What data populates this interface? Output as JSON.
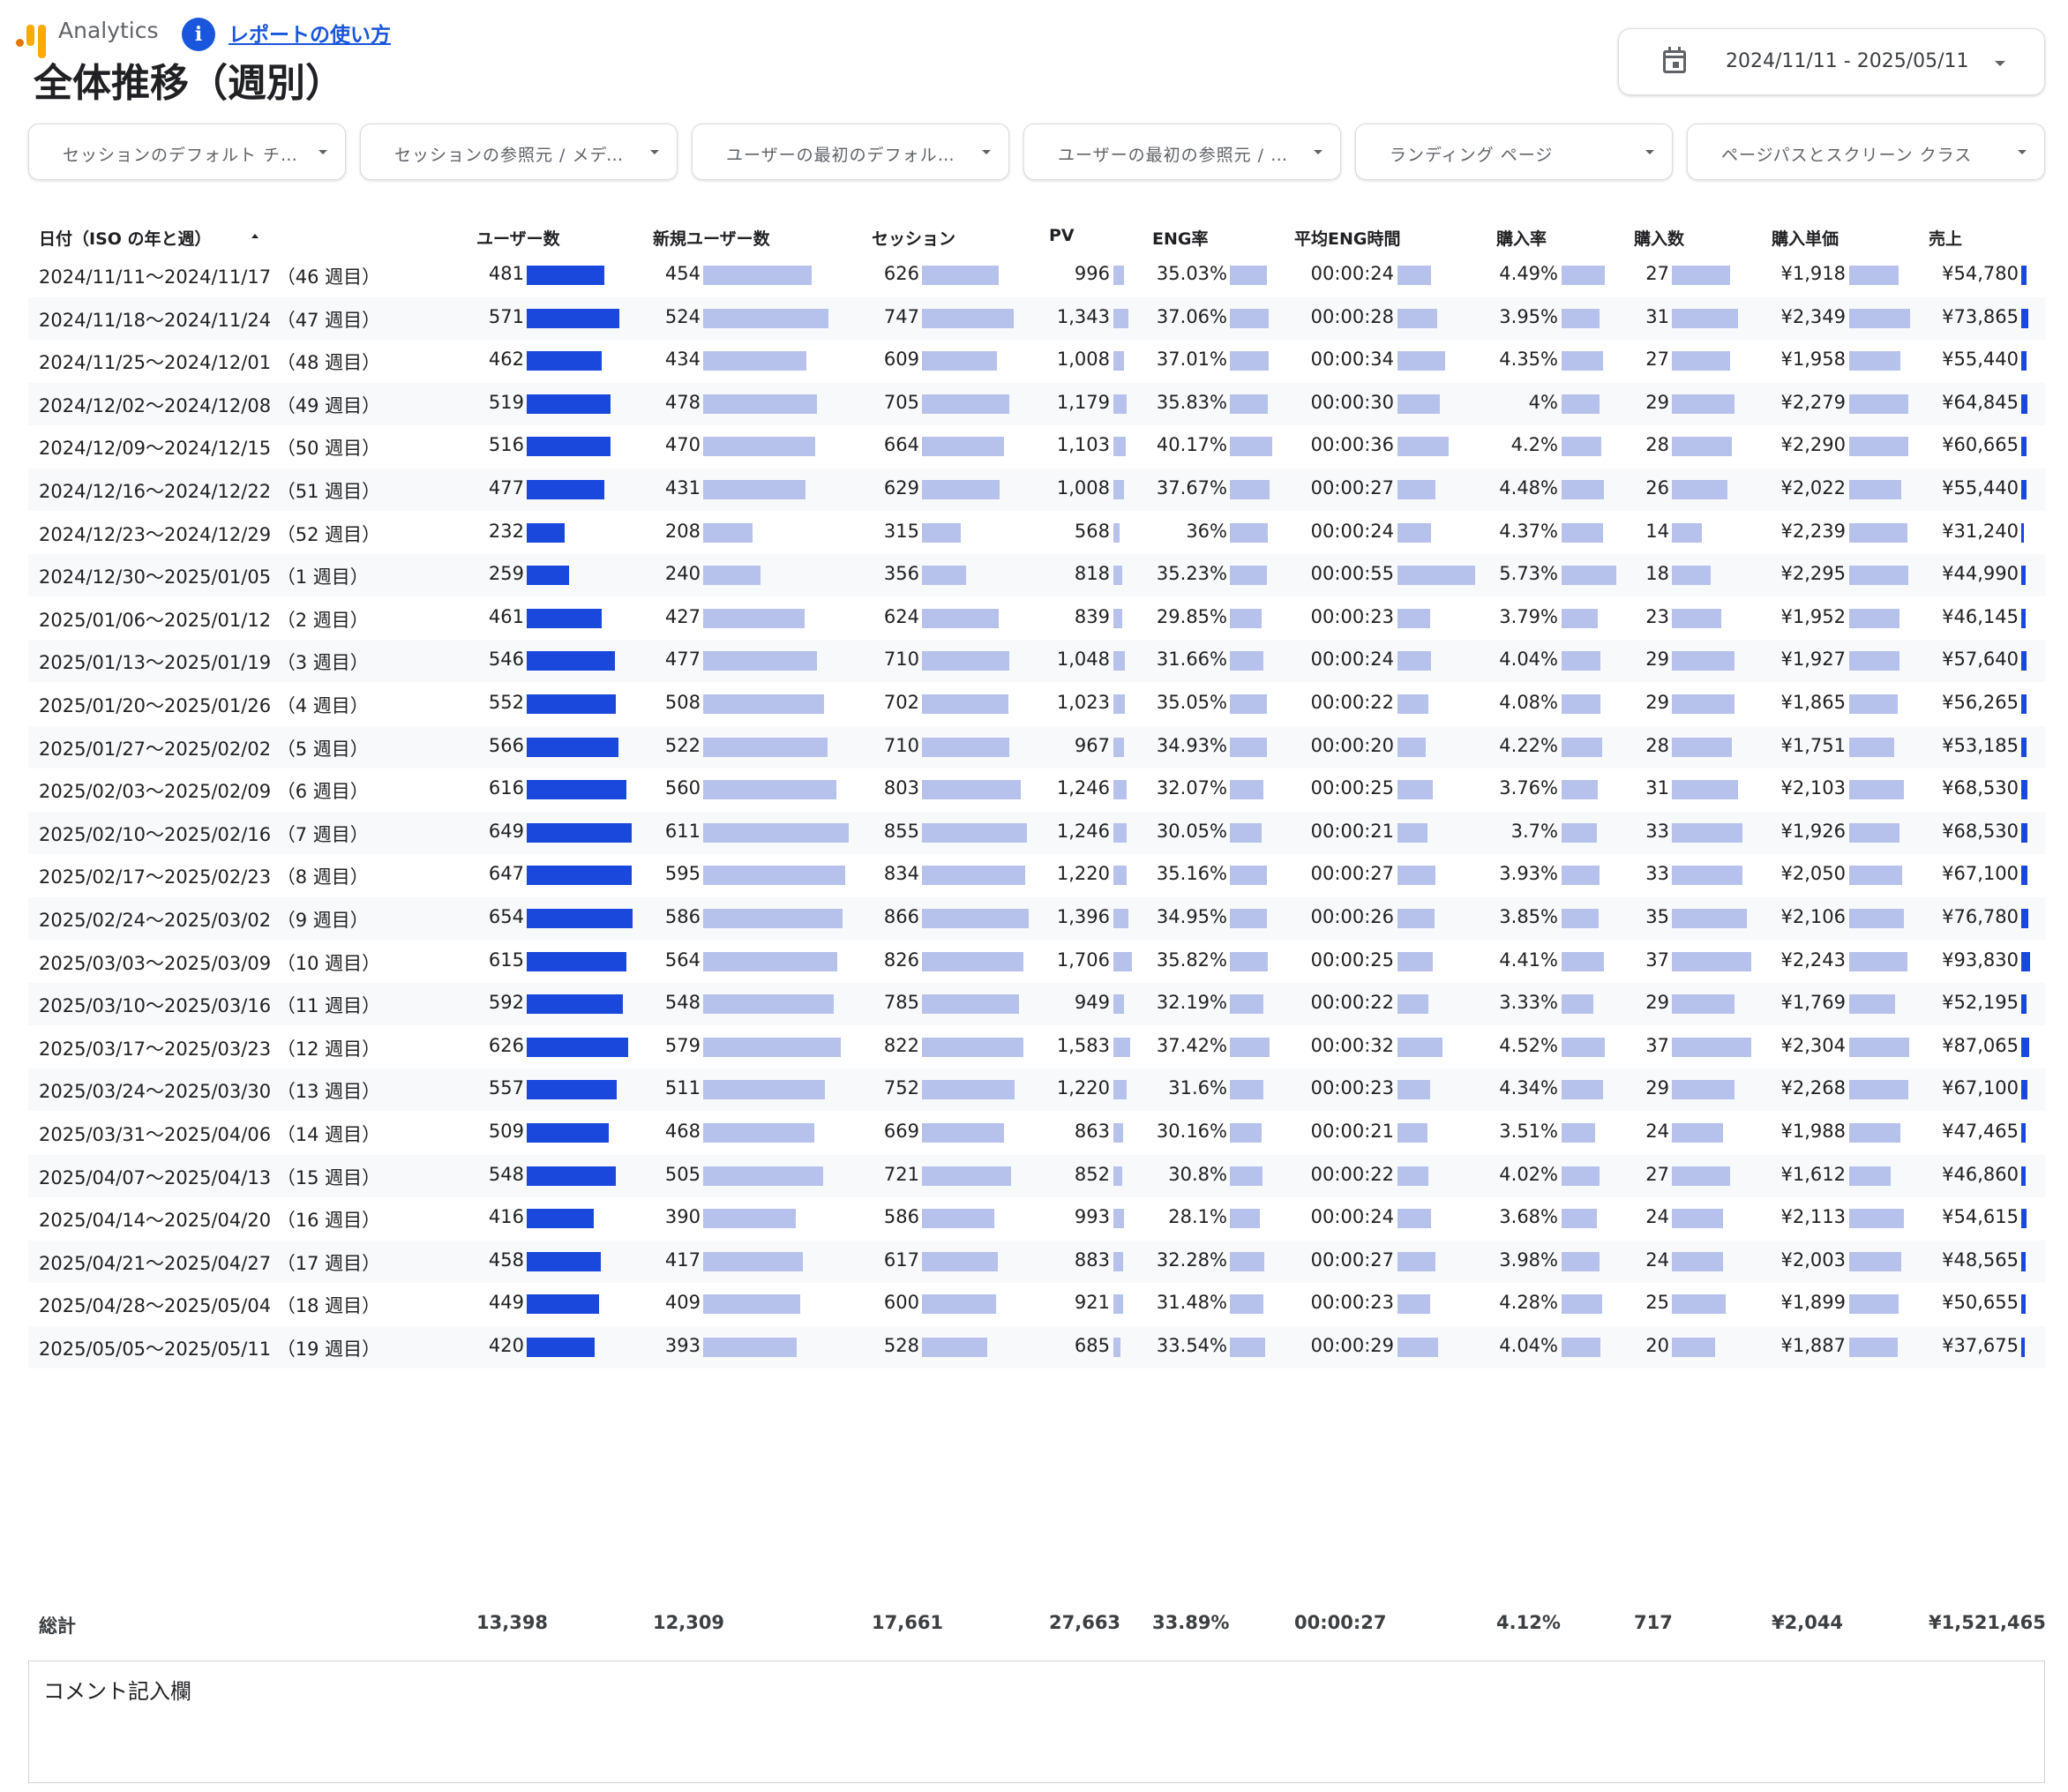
{
  "header": {
    "brand": "Analytics",
    "howto_link": "レポートの使い方",
    "title": "全体推移（週別）"
  },
  "date_range": "2024/11/11 - 2025/05/11",
  "filters": [
    "セッションのデフォルト チャ...",
    "セッションの参照元 / メディア",
    "ユーザーの最初のデフォルト ...",
    "ユーザーの最初の参照元 / メ...",
    "ランディング ページ",
    "ページパスとスクリーン クラス"
  ],
  "columns": [
    "日付（ISO の年と週）",
    "ユーザー数",
    "新規ユーザー数",
    "セッション",
    "PV",
    "ENG率",
    "平均ENG時間",
    "購入率",
    "購入数",
    "購入単価",
    "売上"
  ],
  "rows": [
    {
      "date": "2024/11/11～2024/11/17 （46 週目）",
      "users": "481",
      "new_users": "454",
      "sessions": "626",
      "pv": "996",
      "eng_rate": "35.03%",
      "avg_eng": "00:00:24",
      "purchase_rate": "4.49%",
      "purchases": "27",
      "unit_price": "¥1,918",
      "sales": "¥54,780"
    },
    {
      "date": "2024/11/18～2024/11/24 （47 週目）",
      "users": "571",
      "new_users": "524",
      "sessions": "747",
      "pv": "1,343",
      "eng_rate": "37.06%",
      "avg_eng": "00:00:28",
      "purchase_rate": "3.95%",
      "purchases": "31",
      "unit_price": "¥2,349",
      "sales": "¥73,865"
    },
    {
      "date": "2024/11/25～2024/12/01 （48 週目）",
      "users": "462",
      "new_users": "434",
      "sessions": "609",
      "pv": "1,008",
      "eng_rate": "37.01%",
      "avg_eng": "00:00:34",
      "purchase_rate": "4.35%",
      "purchases": "27",
      "unit_price": "¥1,958",
      "sales": "¥55,440"
    },
    {
      "date": "2024/12/02～2024/12/08 （49 週目）",
      "users": "519",
      "new_users": "478",
      "sessions": "705",
      "pv": "1,179",
      "eng_rate": "35.83%",
      "avg_eng": "00:00:30",
      "purchase_rate": "4%",
      "purchases": "29",
      "unit_price": "¥2,279",
      "sales": "¥64,845"
    },
    {
      "date": "2024/12/09～2024/12/15 （50 週目）",
      "users": "516",
      "new_users": "470",
      "sessions": "664",
      "pv": "1,103",
      "eng_rate": "40.17%",
      "avg_eng": "00:00:36",
      "purchase_rate": "4.2%",
      "purchases": "28",
      "unit_price": "¥2,290",
      "sales": "¥60,665"
    },
    {
      "date": "2024/12/16～2024/12/22 （51 週目）",
      "users": "477",
      "new_users": "431",
      "sessions": "629",
      "pv": "1,008",
      "eng_rate": "37.67%",
      "avg_eng": "00:00:27",
      "purchase_rate": "4.48%",
      "purchases": "26",
      "unit_price": "¥2,022",
      "sales": "¥55,440"
    },
    {
      "date": "2024/12/23～2024/12/29 （52 週目）",
      "users": "232",
      "new_users": "208",
      "sessions": "315",
      "pv": "568",
      "eng_rate": "36%",
      "avg_eng": "00:00:24",
      "purchase_rate": "4.37%",
      "purchases": "14",
      "unit_price": "¥2,239",
      "sales": "¥31,240"
    },
    {
      "date": "2024/12/30～2025/01/05 （1 週目）",
      "users": "259",
      "new_users": "240",
      "sessions": "356",
      "pv": "818",
      "eng_rate": "35.23%",
      "avg_eng": "00:00:55",
      "purchase_rate": "5.73%",
      "purchases": "18",
      "unit_price": "¥2,295",
      "sales": "¥44,990"
    },
    {
      "date": "2025/01/06～2025/01/12 （2 週目）",
      "users": "461",
      "new_users": "427",
      "sessions": "624",
      "pv": "839",
      "eng_rate": "29.85%",
      "avg_eng": "00:00:23",
      "purchase_rate": "3.79%",
      "purchases": "23",
      "unit_price": "¥1,952",
      "sales": "¥46,145"
    },
    {
      "date": "2025/01/13～2025/01/19 （3 週目）",
      "users": "546",
      "new_users": "477",
      "sessions": "710",
      "pv": "1,048",
      "eng_rate": "31.66%",
      "avg_eng": "00:00:24",
      "purchase_rate": "4.04%",
      "purchases": "29",
      "unit_price": "¥1,927",
      "sales": "¥57,640"
    },
    {
      "date": "2025/01/20～2025/01/26 （4 週目）",
      "users": "552",
      "new_users": "508",
      "sessions": "702",
      "pv": "1,023",
      "eng_rate": "35.05%",
      "avg_eng": "00:00:22",
      "purchase_rate": "4.08%",
      "purchases": "29",
      "unit_price": "¥1,865",
      "sales": "¥56,265"
    },
    {
      "date": "2025/01/27～2025/02/02 （5 週目）",
      "users": "566",
      "new_users": "522",
      "sessions": "710",
      "pv": "967",
      "eng_rate": "34.93%",
      "avg_eng": "00:00:20",
      "purchase_rate": "4.22%",
      "purchases": "28",
      "unit_price": "¥1,751",
      "sales": "¥53,185"
    },
    {
      "date": "2025/02/03～2025/02/09 （6 週目）",
      "users": "616",
      "new_users": "560",
      "sessions": "803",
      "pv": "1,246",
      "eng_rate": "32.07%",
      "avg_eng": "00:00:25",
      "purchase_rate": "3.76%",
      "purchases": "31",
      "unit_price": "¥2,103",
      "sales": "¥68,530"
    },
    {
      "date": "2025/02/10～2025/02/16 （7 週目）",
      "users": "649",
      "new_users": "611",
      "sessions": "855",
      "pv": "1,246",
      "eng_rate": "30.05%",
      "avg_eng": "00:00:21",
      "purchase_rate": "3.7%",
      "purchases": "33",
      "unit_price": "¥1,926",
      "sales": "¥68,530"
    },
    {
      "date": "2025/02/17～2025/02/23 （8 週目）",
      "users": "647",
      "new_users": "595",
      "sessions": "834",
      "pv": "1,220",
      "eng_rate": "35.16%",
      "avg_eng": "00:00:27",
      "purchase_rate": "3.93%",
      "purchases": "33",
      "unit_price": "¥2,050",
      "sales": "¥67,100"
    },
    {
      "date": "2025/02/24～2025/03/02 （9 週目）",
      "users": "654",
      "new_users": "586",
      "sessions": "866",
      "pv": "1,396",
      "eng_rate": "34.95%",
      "avg_eng": "00:00:26",
      "purchase_rate": "3.85%",
      "purchases": "35",
      "unit_price": "¥2,106",
      "sales": "¥76,780"
    },
    {
      "date": "2025/03/03～2025/03/09 （10 週目）",
      "users": "615",
      "new_users": "564",
      "sessions": "826",
      "pv": "1,706",
      "eng_rate": "35.82%",
      "avg_eng": "00:00:25",
      "purchase_rate": "4.41%",
      "purchases": "37",
      "unit_price": "¥2,243",
      "sales": "¥93,830"
    },
    {
      "date": "2025/03/10～2025/03/16 （11 週目）",
      "users": "592",
      "new_users": "548",
      "sessions": "785",
      "pv": "949",
      "eng_rate": "32.19%",
      "avg_eng": "00:00:22",
      "purchase_rate": "3.33%",
      "purchases": "29",
      "unit_price": "¥1,769",
      "sales": "¥52,195"
    },
    {
      "date": "2025/03/17～2025/03/23 （12 週目）",
      "users": "626",
      "new_users": "579",
      "sessions": "822",
      "pv": "1,583",
      "eng_rate": "37.42%",
      "avg_eng": "00:00:32",
      "purchase_rate": "4.52%",
      "purchases": "37",
      "unit_price": "¥2,304",
      "sales": "¥87,065"
    },
    {
      "date": "2025/03/24～2025/03/30 （13 週目）",
      "users": "557",
      "new_users": "511",
      "sessions": "752",
      "pv": "1,220",
      "eng_rate": "31.6%",
      "avg_eng": "00:00:23",
      "purchase_rate": "4.34%",
      "purchases": "29",
      "unit_price": "¥2,268",
      "sales": "¥67,100"
    },
    {
      "date": "2025/03/31～2025/04/06 （14 週目）",
      "users": "509",
      "new_users": "468",
      "sessions": "669",
      "pv": "863",
      "eng_rate": "30.16%",
      "avg_eng": "00:00:21",
      "purchase_rate": "3.51%",
      "purchases": "24",
      "unit_price": "¥1,988",
      "sales": "¥47,465"
    },
    {
      "date": "2025/04/07～2025/04/13 （15 週目）",
      "users": "548",
      "new_users": "505",
      "sessions": "721",
      "pv": "852",
      "eng_rate": "30.8%",
      "avg_eng": "00:00:22",
      "purchase_rate": "4.02%",
      "purchases": "27",
      "unit_price": "¥1,612",
      "sales": "¥46,860"
    },
    {
      "date": "2025/04/14～2025/04/20 （16 週目）",
      "users": "416",
      "new_users": "390",
      "sessions": "586",
      "pv": "993",
      "eng_rate": "28.1%",
      "avg_eng": "00:00:24",
      "purchase_rate": "3.68%",
      "purchases": "24",
      "unit_price": "¥2,113",
      "sales": "¥54,615"
    },
    {
      "date": "2025/04/21～2025/04/27 （17 週目）",
      "users": "458",
      "new_users": "417",
      "sessions": "617",
      "pv": "883",
      "eng_rate": "32.28%",
      "avg_eng": "00:00:27",
      "purchase_rate": "3.98%",
      "purchases": "24",
      "unit_price": "¥2,003",
      "sales": "¥48,565"
    },
    {
      "date": "2025/04/28～2025/05/04 （18 週目）",
      "users": "449",
      "new_users": "409",
      "sessions": "600",
      "pv": "921",
      "eng_rate": "31.48%",
      "avg_eng": "00:00:23",
      "purchase_rate": "4.28%",
      "purchases": "25",
      "unit_price": "¥1,899",
      "sales": "¥50,655"
    },
    {
      "date": "2025/05/05～2025/05/11 （19 週目）",
      "users": "420",
      "new_users": "393",
      "sessions": "528",
      "pv": "685",
      "eng_rate": "33.54%",
      "avg_eng": "00:00:29",
      "purchase_rate": "4.04%",
      "purchases": "20",
      "unit_price": "¥1,887",
      "sales": "¥37,675"
    }
  ],
  "totals": {
    "label": "総計",
    "users": "13,398",
    "new_users": "12,309",
    "sessions": "17,661",
    "pv": "27,663",
    "eng_rate": "33.89%",
    "avg_eng": "00:00:27",
    "purchase_rate": "4.12%",
    "purchases": "717",
    "unit_price": "¥2,044",
    "sales": "¥1,521,465"
  },
  "comment_label": "コメント記入欄",
  "icons": {
    "logo": "analytics-logo-icon",
    "info": "info-icon",
    "calendar": "calendar-icon",
    "dropdown": "chevron-down-icon",
    "sort": "sort-ascending-icon"
  },
  "colors": {
    "accent": "#1a56db",
    "strong_bar": "#1a47dc",
    "light_bar": "#b7c2ec",
    "logo_orange": "#f9ab00",
    "logo_dark_orange": "#e37400",
    "row_alt": "#f8f9fb"
  }
}
